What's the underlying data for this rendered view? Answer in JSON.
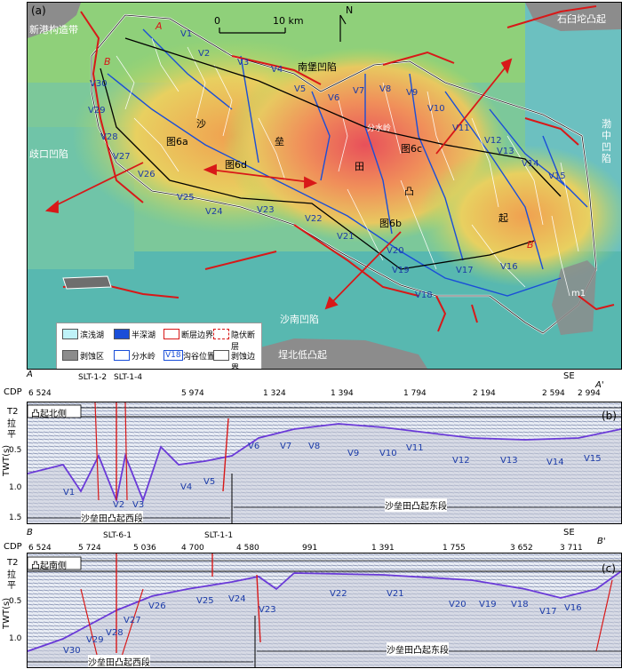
{
  "map": {
    "panel_label": "(a)",
    "scale_zero": "0",
    "scale_ten": "10 km",
    "north": "N",
    "regions": {
      "xingang": "新港构造带",
      "shibaituo": "石臼坨凸起",
      "nanpu": "南堡凹陷",
      "bohaizhong": "渤中凹陷",
      "qikou": "歧口凹陷",
      "shanan": "沙南凹陷",
      "chengbei": "埕北低凸起"
    },
    "uplift_chars": [
      "沙",
      "垒",
      "田",
      "凸",
      "起"
    ],
    "fendshuiling": "分水岭",
    "fig_labels": [
      "图6a",
      "图6d",
      "图6c",
      "图6b"
    ],
    "line_ends": [
      "A",
      "B",
      "A'",
      "B'"
    ],
    "m1": "m1",
    "valleys": [
      "V1",
      "V2",
      "V3",
      "V4",
      "V5",
      "V6",
      "V7",
      "V8",
      "V9",
      "V10",
      "V11",
      "V12",
      "V13",
      "V14",
      "V15",
      "V16",
      "V17",
      "V18",
      "V19",
      "V20",
      "V21",
      "V22",
      "V23",
      "V24",
      "V25",
      "V26",
      "V27",
      "V28",
      "V29",
      "V30"
    ]
  },
  "legend": {
    "items": [
      "滨浅湖",
      "半深湖",
      "断层边界",
      "隐伏断层",
      "剥蚀区",
      "分水岭",
      "沟谷位置",
      "剥蚀边界"
    ],
    "v18": "V18",
    "colors": {
      "shallow": "#bff2f8",
      "deep": "#1a4ed8",
      "erosion": "#8c8c8c"
    }
  },
  "section_b": {
    "end_left": "A",
    "end_right": "A'",
    "se": "SE",
    "panel_label": "(b)",
    "cdp_label": "CDP",
    "cdps": [
      "6 524",
      "5 974",
      "1 324",
      "1 394",
      "1 794",
      "2 194",
      "2 594",
      "2 994"
    ],
    "wells": [
      "SLT-1-2",
      "SLT-1-4"
    ],
    "t2": "T2",
    "flat": "拉平",
    "flank": "凸起北侧",
    "axis_label": "TWT(s)",
    "ticks": [
      "0.5",
      "1.0",
      "1.5"
    ],
    "valleys": [
      "V1",
      "V2",
      "V3",
      "V4",
      "V5",
      "V6",
      "V7",
      "V8",
      "V9",
      "V10",
      "V11",
      "V12",
      "V13",
      "V14",
      "V15"
    ],
    "west_segment": "沙垒田凸起西段",
    "east_segment": "沙垒田凸起东段"
  },
  "section_c": {
    "end_left": "B",
    "end_right": "B'",
    "se": "SE",
    "panel_label": "(c)",
    "cdp_label": "CDP",
    "cdps": [
      "6 524",
      "5 724",
      "5 036",
      "4 700",
      "4 580",
      "991",
      "1 391",
      "1 755",
      "3 652",
      "3 711"
    ],
    "wells": [
      "SLT-6-1",
      "SLT-1-1"
    ],
    "t2": "T2",
    "flat": "拉平",
    "flank": "凸起南侧",
    "axis_label": "TWT(s)",
    "ticks": [
      "0.5",
      "1.0"
    ],
    "valleys": [
      "V30",
      "V29",
      "V28",
      "V27",
      "V26",
      "V25",
      "V24",
      "V23",
      "V22",
      "V21",
      "V20",
      "V19",
      "V18",
      "V17",
      "V16"
    ],
    "west_segment": "沙垒田凸起西段",
    "east_segment": "沙垒田凸起东段"
  }
}
